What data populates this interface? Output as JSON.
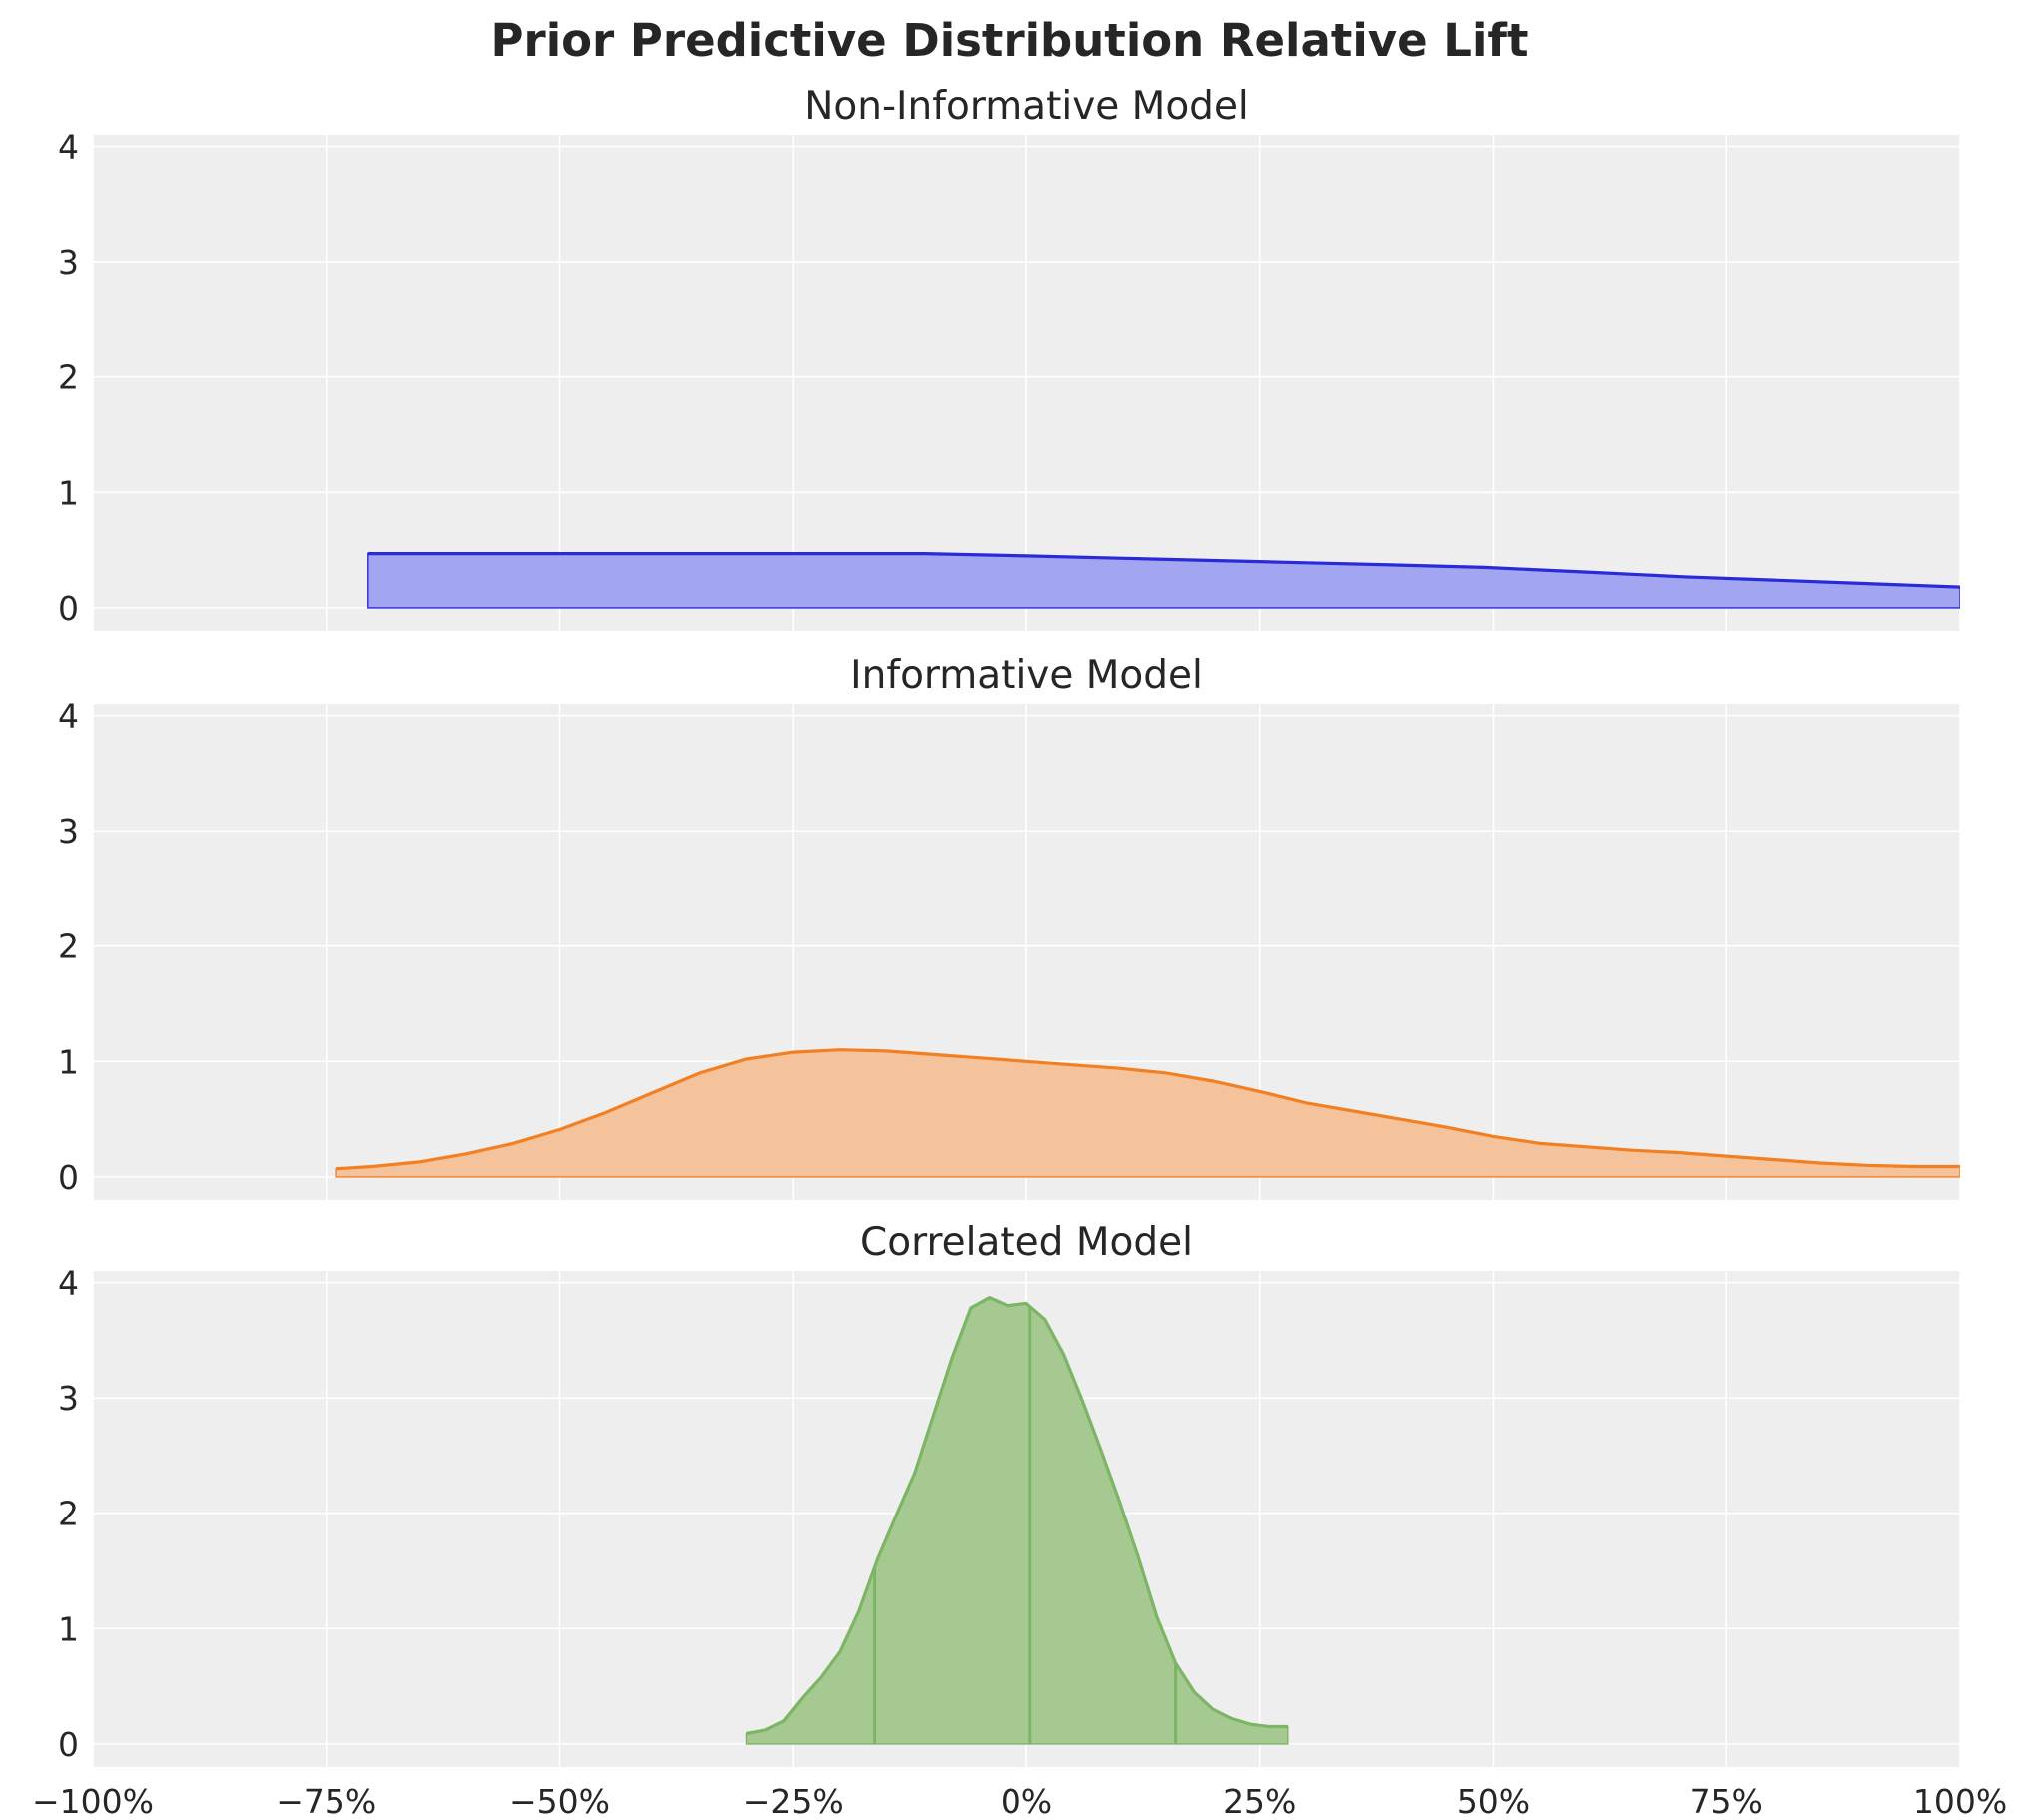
{
  "chart_data": {
    "type": "area",
    "title": "Prior Predictive Distribution Relative Lift",
    "sharex": true,
    "xlim": [
      -100,
      100
    ],
    "ylim": [
      -0.2,
      4.1
    ],
    "x_ticks": [
      -100,
      -75,
      -50,
      -25,
      0,
      25,
      50,
      75,
      100
    ],
    "x_tick_labels": [
      "−100%",
      "−75%",
      "−50%",
      "−25%",
      "0%",
      "25%",
      "50%",
      "75%",
      "100%"
    ],
    "y_ticks": [
      0,
      1,
      2,
      3,
      4
    ],
    "y_tick_labels": [
      "0",
      "1",
      "2",
      "3",
      "4"
    ],
    "grid": true,
    "panels": [
      {
        "title": "Non-Informative Model",
        "color": "#2a2ad8",
        "fill": "#9da0ee",
        "x": [
          -70.5,
          -60,
          -40,
          -20,
          -11,
          0,
          10,
          20,
          30,
          40,
          49,
          60,
          70,
          80,
          90,
          100
        ],
        "y": [
          0.47,
          0.47,
          0.47,
          0.47,
          0.47,
          0.45,
          0.43,
          0.41,
          0.39,
          0.37,
          0.35,
          0.31,
          0.27,
          0.24,
          0.21,
          0.18
        ],
        "hdi_lines": []
      },
      {
        "title": "Informative Model",
        "color": "#f28023",
        "fill": "#f3bf96",
        "x": [
          -74,
          -70,
          -65,
          -60,
          -55,
          -50,
          -45,
          -40,
          -35,
          -30,
          -25,
          -20,
          -15,
          -10,
          -5,
          0,
          5,
          10,
          15,
          20,
          25,
          30,
          35,
          40,
          45,
          50,
          55,
          60,
          65,
          70,
          75,
          80,
          85,
          90,
          95,
          100
        ],
        "y": [
          0.07,
          0.09,
          0.13,
          0.2,
          0.29,
          0.41,
          0.56,
          0.73,
          0.9,
          1.02,
          1.08,
          1.1,
          1.09,
          1.06,
          1.03,
          1.0,
          0.97,
          0.94,
          0.9,
          0.83,
          0.74,
          0.64,
          0.57,
          0.5,
          0.43,
          0.35,
          0.29,
          0.26,
          0.23,
          0.21,
          0.18,
          0.15,
          0.12,
          0.1,
          0.09,
          0.09
        ],
        "hdi_lines": []
      },
      {
        "title": "Correlated Model",
        "color": "#7cb564",
        "fill": "#a0c68a",
        "x": [
          -30,
          -28,
          -26,
          -24,
          -22,
          -20,
          -18,
          -16,
          -14,
          -12,
          -10,
          -8,
          -6,
          -4,
          -2,
          0,
          2,
          4,
          6,
          8,
          10,
          12,
          14,
          16,
          18,
          20,
          22,
          24,
          26,
          28
        ],
        "y": [
          0.09,
          0.12,
          0.2,
          0.4,
          0.58,
          0.8,
          1.15,
          1.6,
          1.98,
          2.35,
          2.85,
          3.35,
          3.78,
          3.87,
          3.8,
          3.82,
          3.68,
          3.38,
          2.98,
          2.55,
          2.1,
          1.62,
          1.1,
          0.7,
          0.45,
          0.3,
          0.22,
          0.17,
          0.15,
          0.15
        ],
        "hdi_lines": [
          -16.3,
          0.4,
          16.0
        ]
      }
    ]
  }
}
